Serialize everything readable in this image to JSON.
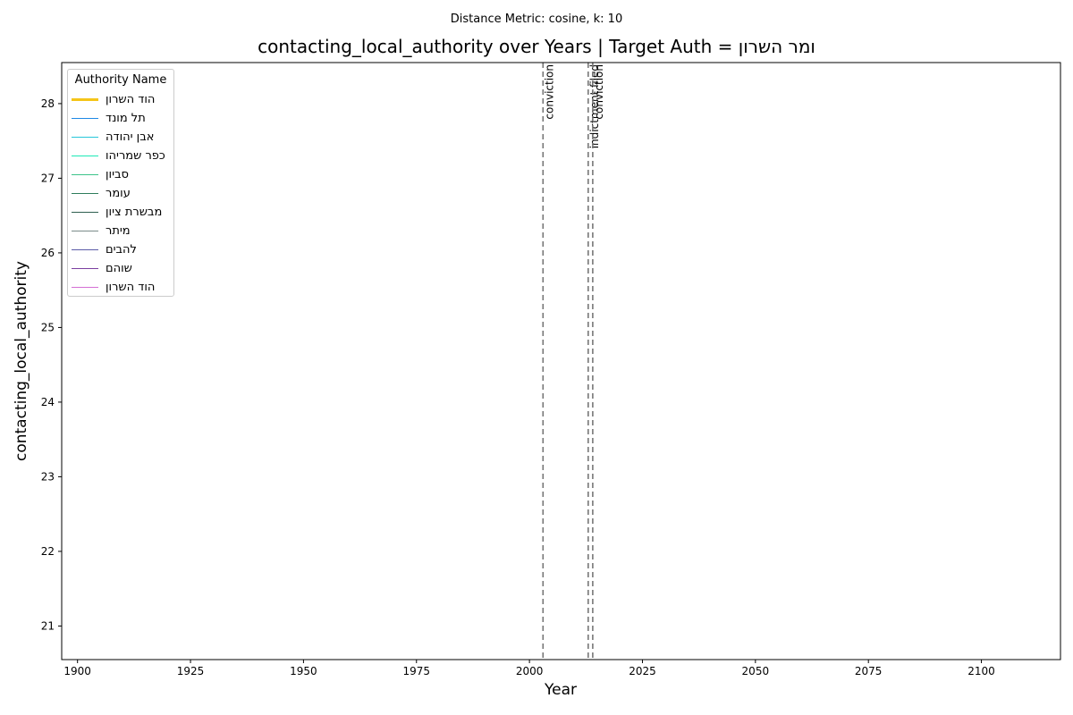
{
  "suptitle": "Distance Metric: cosine, k: 10",
  "chart_data": {
    "type": "line",
    "title_prefix": "contacting_local_authority over Years | Target Auth = ",
    "title_target": "ומר השרון",
    "xlabel": "Year",
    "ylabel": "contacting_local_authority",
    "xlim": [
      1896.5,
      2117.5
    ],
    "ylim": [
      20.55,
      28.55
    ],
    "x_ticks": [
      1900,
      1925,
      1950,
      1975,
      2000,
      2025,
      2050,
      2075,
      2100
    ],
    "y_ticks": [
      21,
      22,
      23,
      24,
      25,
      26,
      27,
      28
    ],
    "grid": false,
    "legend": {
      "title": "Authority Name",
      "placement": "top-left",
      "entries": [
        {
          "name": "הוד השרון",
          "color": "#f5c518",
          "width": 3
        },
        {
          "name": "תל מונד",
          "color": "#1e88e5",
          "width": 1.5
        },
        {
          "name": "אבן יהודה",
          "color": "#26c6da",
          "width": 1.5
        },
        {
          "name": "כפר שמריהו",
          "color": "#1de9b6",
          "width": 1.5
        },
        {
          "name": "סביון",
          "color": "#3dc48a",
          "width": 1.5
        },
        {
          "name": "עומר",
          "color": "#2e7d5b",
          "width": 1.5
        },
        {
          "name": "מבשרת ציון",
          "color": "#2f5f4f",
          "width": 1.5
        },
        {
          "name": "מיתר",
          "color": "#7b8c8a",
          "width": 1.5
        },
        {
          "name": "להבים",
          "color": "#5c5ca8",
          "width": 1.5
        },
        {
          "name": "שוהם",
          "color": "#7b3fa0",
          "width": 1.5
        },
        {
          "name": "הוד השרון",
          "color": "#d46fd4",
          "width": 1.5
        }
      ]
    },
    "series": [],
    "events": [
      {
        "year": 2003,
        "label": "conviction"
      },
      {
        "year": 2013,
        "label": "indictment filed"
      },
      {
        "year": 2014,
        "label": "conviction"
      }
    ]
  }
}
